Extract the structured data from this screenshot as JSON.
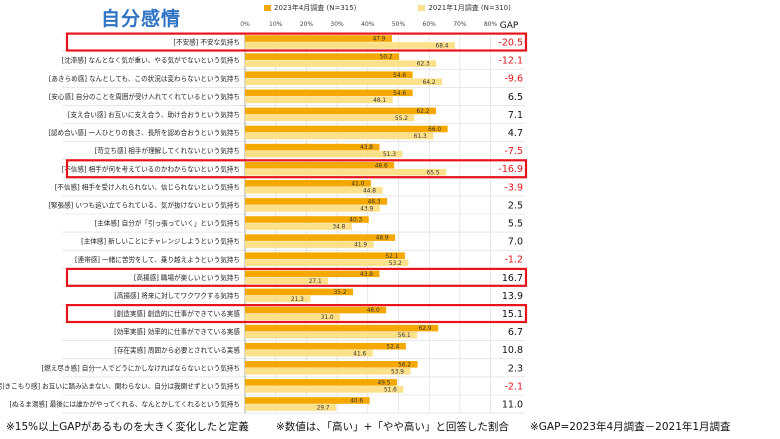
{
  "title": "自分感情",
  "legend": [
    {
      "label": "2023年4月調査 (N=315)",
      "color": "#f5a800"
    },
    {
      "label": "2021年1月調査 (N=310)",
      "color": "#fde08a"
    }
  ],
  "gap_header": "GAP",
  "x_ticks": [
    "0%",
    "10%",
    "20%",
    "30%",
    "40%",
    "50%",
    "60%",
    "70%",
    "80%"
  ],
  "colors": {
    "bar2023": "#f5a800",
    "bar2021": "#fde08a",
    "gap_negative": "#e8141c",
    "gap_positive": "#111111",
    "highlight_box": "#e8141c"
  },
  "chart_data": {
    "type": "bar",
    "orientation": "horizontal",
    "xlim": [
      0,
      80
    ],
    "grid": true,
    "categories": [
      "[不安感] 不安な気持ち",
      "[沈滞感] なんとなく気が重い、やる気がでないという気持ち",
      "[あきらめ感] なんとしても、この状況は変わらないという気持ち",
      "[安心感] 自分のことを周囲が受け入れてくれているという気持ち",
      "[支え合い感] お互いに支え合う、助け合おうという気持ち",
      "[認め合い感] 一人ひとりの良さ、長所を認め合おうという気持ち",
      "[苛立ち感] 相手が理解してくれないという気持ち",
      "[不信感] 相手が何を考えているのかわからないという気持ち",
      "[不信感] 相手を受け入れられない、信じられないという気持ち",
      "[緊張感] いつも追い立てられている、気が抜けないという気持ち",
      "[主体感] 自分が「引っ張っていく」という気持ち",
      "[主体感] 新しいことにチャレンジしようという気持ち",
      "[連帯感] 一緒に苦労をして、乗り越えようという気持ち",
      "[高揚感] 職場が楽しいという気持ち",
      "[高揚感] 将来に対してワクワクする気持ち",
      "[創造実感] 創造的に仕事ができている実感",
      "[効率実感] 効率的に仕事ができている実感",
      "[存在実感] 周囲から必要とされている実感",
      "[燃え尽き感] 自分一人でどうにかしなければならないという気持ち",
      "[引きこもり感] お互いに踏み込まない、関わらない、自分は我関せずという気持ち",
      "[ぬるま湯感] 最後には誰かがやってくれる、なんとかしてくれるという気持ち"
    ],
    "series": [
      {
        "name": "2023年4月調査 (N=315)",
        "values": [
          47.9,
          50.2,
          54.6,
          54.6,
          62.2,
          66.0,
          43.8,
          48.6,
          41.0,
          46.3,
          40.3,
          48.9,
          52.1,
          43.8,
          35.2,
          46.0,
          62.9,
          52.4,
          56.2,
          49.5,
          40.6
        ]
      },
      {
        "name": "2021年1月調査 (N=310)",
        "values": [
          68.4,
          62.3,
          64.2,
          48.1,
          55.2,
          61.3,
          51.3,
          65.5,
          44.8,
          43.9,
          34.8,
          41.9,
          53.2,
          27.1,
          21.3,
          31.0,
          56.1,
          41.6,
          53.9,
          51.6,
          29.7
        ]
      }
    ],
    "gap": [
      "-20.5",
      "-12.1",
      "-9.6",
      "6.5",
      "7.1",
      "4.7",
      "-7.5",
      "-16.9",
      "-3.9",
      "2.5",
      "5.5",
      "7.0",
      "-1.2",
      "16.7",
      "13.9",
      "15.1",
      "6.7",
      "10.8",
      "2.3",
      "-2.1",
      "11.0"
    ],
    "highlighted_rows": [
      0,
      7,
      13,
      15
    ]
  },
  "footnotes": [
    "※15%以上GAPがあるものを大きく変化したと定義",
    "※数値は、「高い」+「やや高い」と回答した割合",
    "※GAP=2023年4月調査－2021年1月調査"
  ]
}
